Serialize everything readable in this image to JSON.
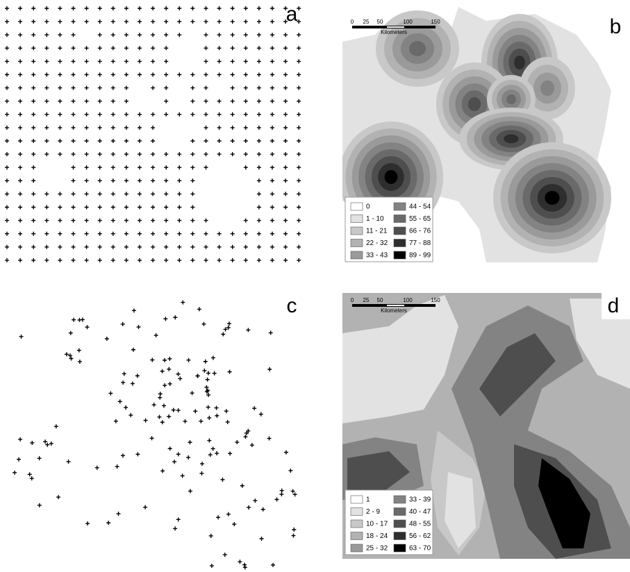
{
  "panels": [
    {
      "label": "a"
    },
    {
      "label": "b",
      "scale_bar": {
        "ticks": [
          "0",
          "25",
          "50",
          "100",
          "150"
        ],
        "unit": "Kilometers"
      },
      "legend": [
        "0",
        "1 - 10",
        "11 - 21",
        "22 - 32",
        "33 - 43",
        "44 - 54",
        "55 - 65",
        "66 - 76",
        "77 - 88",
        "89 - 99"
      ]
    },
    {
      "label": "c"
    },
    {
      "label": "d",
      "scale_bar": {
        "ticks": [
          "0",
          "25",
          "50",
          "100",
          "150"
        ],
        "unit": "Kilometers"
      },
      "legend": [
        "1",
        "2 - 9",
        "10 - 17",
        "18 - 24",
        "25 - 32",
        "33 - 39",
        "40 - 47",
        "48 - 55",
        "56 - 62",
        "63 - 70"
      ]
    }
  ]
}
